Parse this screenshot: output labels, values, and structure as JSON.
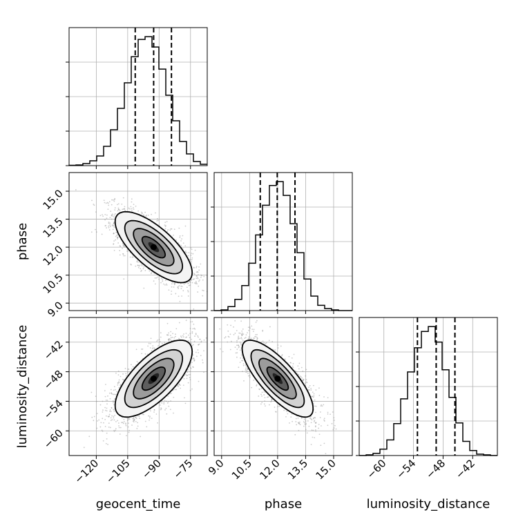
{
  "chart_data": {
    "type": "corner",
    "parameters": [
      "geocent_time",
      "phase",
      "luminosity_distance"
    ],
    "axis_labels": {
      "geocent_time": "geocent_time",
      "phase": "phase",
      "luminosity_distance": "luminosity_distance"
    },
    "ranges": {
      "geocent_time": [
        -133,
        -67
      ],
      "phase": [
        8.6,
        16.0
      ],
      "luminosity_distance": [
        -65,
        -37
      ]
    },
    "ticks": {
      "geocent_time": [
        {
          "v": -120,
          "label": "−120"
        },
        {
          "v": -105,
          "label": "−105"
        },
        {
          "v": -90,
          "label": "−90"
        },
        {
          "v": -75,
          "label": "−75"
        }
      ],
      "phase": [
        {
          "v": 9.0,
          "label": "9.0"
        },
        {
          "v": 10.5,
          "label": "10.5"
        },
        {
          "v": 12.0,
          "label": "12.0"
        },
        {
          "v": 13.5,
          "label": "13.5"
        },
        {
          "v": 15.0,
          "label": "15.0"
        }
      ],
      "luminosity_distance": [
        {
          "v": -60,
          "label": "−60"
        },
        {
          "v": -54,
          "label": "−54"
        },
        {
          "v": -48,
          "label": "−48"
        },
        {
          "v": -42,
          "label": "−42"
        }
      ]
    },
    "histograms": {
      "geocent_time": {
        "edges": [
          -133,
          -129.7,
          -126.4,
          -123.1,
          -119.8,
          -116.5,
          -113.2,
          -109.9,
          -106.6,
          -103.3,
          -100,
          -96.7,
          -93.4,
          -90.1,
          -86.8,
          -83.5,
          -80.2,
          -76.9,
          -73.6,
          -70.3,
          -67
        ],
        "counts": [
          0.5,
          1,
          3,
          7,
          14,
          28,
          52,
          83,
          120,
          158,
          183,
          187,
          172,
          140,
          102,
          65,
          35,
          17,
          6,
          2
        ],
        "quantiles": [
          -101.4,
          -92.6,
          -84.1
        ]
      },
      "phase": {
        "edges": [
          8.6,
          8.97,
          9.34,
          9.71,
          10.08,
          10.45,
          10.82,
          11.19,
          11.56,
          11.93,
          12.3,
          12.67,
          13.04,
          13.41,
          13.78,
          14.15,
          14.52,
          14.89,
          15.26,
          15.63,
          16.0
        ],
        "counts": [
          0,
          1,
          6,
          17,
          38,
          72,
          115,
          160,
          190,
          196,
          175,
          132,
          88,
          48,
          22,
          8,
          3,
          1,
          0,
          0
        ],
        "quantiles": [
          11.07,
          11.98,
          12.93
        ]
      },
      "luminosity_distance": {
        "edges": [
          -65,
          -63.6,
          -62.2,
          -60.8,
          -59.4,
          -58,
          -56.6,
          -55.2,
          -53.8,
          -52.4,
          -51,
          -49.6,
          -48.2,
          -46.8,
          -45.4,
          -44,
          -42.6,
          -41.2,
          -39.8,
          -38.4,
          -37
        ],
        "counts": [
          0,
          1,
          3,
          9,
          22,
          45,
          80,
          118,
          152,
          175,
          182,
          160,
          121,
          82,
          46,
          20,
          7,
          2,
          1,
          0
        ],
        "quantiles": [
          -53.2,
          -49.4,
          -45.6
        ]
      }
    },
    "correlations": [
      {
        "x": "geocent_time",
        "y": "phase",
        "mean": [
          -92.6,
          12.0
        ],
        "sd": [
          9.2,
          0.95
        ],
        "rho": -0.72
      },
      {
        "x": "geocent_time",
        "y": "luminosity_distance",
        "mean": [
          -92.6,
          -49.4
        ],
        "sd": [
          9.2,
          3.9
        ],
        "rho": 0.7
      },
      {
        "x": "phase",
        "y": "luminosity_distance",
        "mean": [
          12.0,
          -49.4
        ],
        "sd": [
          0.95,
          3.9
        ],
        "rho": -0.78
      }
    ],
    "grid": true
  }
}
